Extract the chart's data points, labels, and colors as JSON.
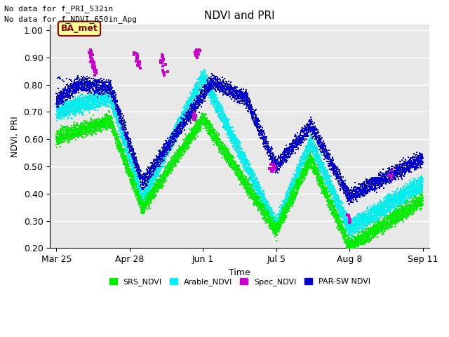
{
  "title": "NDVI and PRI",
  "xlabel": "Time",
  "ylabel": "NDVI, PRI",
  "text_line1": "No data for f_PRI_532in",
  "text_line2": "No data for f_NDVI_650in_Apg",
  "ba_met_label": "BA_met",
  "ylim": [
    0.2,
    1.02
  ],
  "yticks": [
    0.2,
    0.3,
    0.4,
    0.5,
    0.6,
    0.7,
    0.8,
    0.9,
    1.0
  ],
  "xtick_labels": [
    "Mar 25",
    "Apr 28",
    "Jun 1",
    "Jul 5",
    "Aug 8",
    "Sep 11"
  ],
  "colors": {
    "SRS_NDVI": "#00ee00",
    "Arable_NDVI": "#00eeee",
    "Spec_NDVI": "#cc00cc",
    "PAR_SW_NDVI": "#0000cc",
    "background": "#e8e8e8",
    "ba_met_bg": "#ffff99",
    "ba_met_border": "#880000"
  },
  "legend_labels": [
    "SRS_NDVI",
    "Arable_NDVI",
    "Spec_NDVI",
    "PAR-SW NDVI"
  ],
  "marker_size": 4,
  "total_days": 170
}
